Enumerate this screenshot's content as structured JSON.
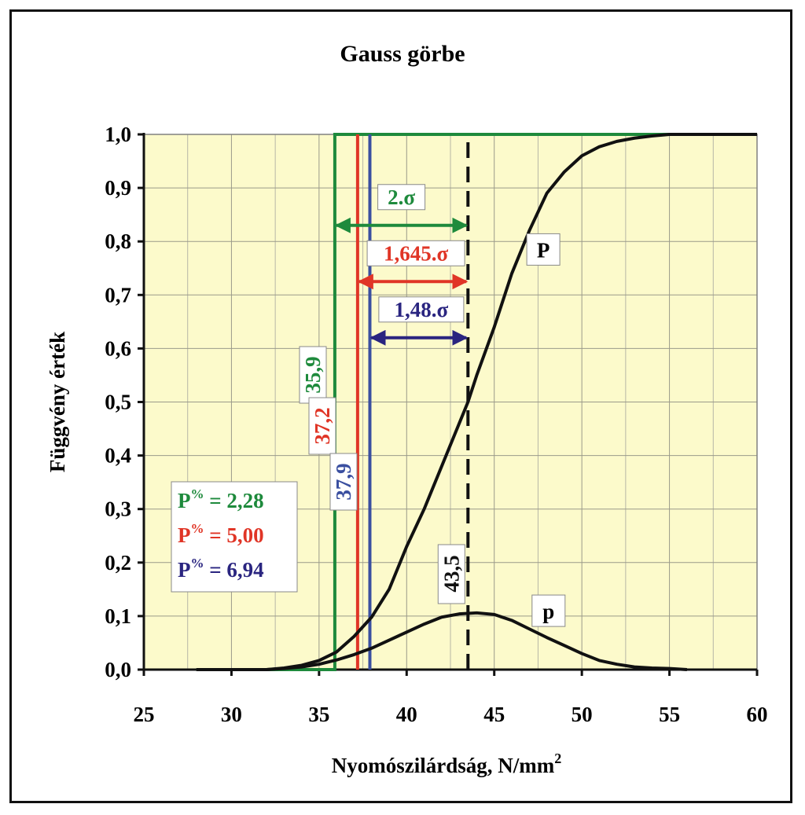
{
  "chart_data": {
    "type": "line",
    "title": "Gauss görbe",
    "xlabel": "Nyomószilárdság, N/mm",
    "xlabel_sup": "2",
    "ylabel": "Függvény érték",
    "xlim": [
      25,
      60
    ],
    "ylim": [
      0,
      1
    ],
    "xticks": [
      "25",
      "30",
      "35",
      "40",
      "45",
      "50",
      "55",
      "60"
    ],
    "yticks": [
      "0,0",
      "0,1",
      "0,2",
      "0,3",
      "0,4",
      "0,5",
      "0,6",
      "0,7",
      "0,8",
      "0,9",
      "1,0"
    ],
    "grid": true,
    "series": [
      {
        "name": "P",
        "x": [
          28,
          30,
          32,
          33,
          34,
          35,
          36,
          37,
          38,
          39,
          40,
          41,
          42,
          43,
          43.5,
          44,
          45,
          46,
          47,
          48,
          49,
          50,
          51,
          52,
          53,
          54,
          55,
          56,
          60
        ],
        "values": [
          0,
          0,
          0,
          0.003,
          0.008,
          0.017,
          0.033,
          0.062,
          0.098,
          0.15,
          0.23,
          0.3,
          0.38,
          0.46,
          0.5,
          0.55,
          0.64,
          0.74,
          0.82,
          0.89,
          0.93,
          0.96,
          0.977,
          0.987,
          0.993,
          0.997,
          1.0,
          1.0,
          1.0
        ]
      },
      {
        "name": "p",
        "x": [
          28,
          30,
          32,
          33,
          34,
          35,
          36,
          37,
          38,
          39,
          40,
          41,
          42,
          43,
          44,
          45,
          46,
          47,
          48,
          49,
          50,
          51,
          52,
          53,
          54,
          55,
          56
        ],
        "values": [
          0,
          0,
          0,
          0.002,
          0.005,
          0.01,
          0.018,
          0.028,
          0.04,
          0.055,
          0.07,
          0.085,
          0.098,
          0.104,
          0.106,
          0.103,
          0.092,
          0.076,
          0.06,
          0.045,
          0.03,
          0.017,
          0.01,
          0.005,
          0.003,
          0.002,
          0
        ]
      }
    ],
    "green_line": {
      "from": [
        28,
        0
      ],
      "to_x": 35.9,
      "top": 1.0,
      "to_end": 60
    },
    "vlines": [
      {
        "x": 35.9,
        "color": "#1e8a3c",
        "label": "35,9"
      },
      {
        "x": 37.2,
        "color": "#e03526",
        "label": "37,2"
      },
      {
        "x": 37.9,
        "color": "#3a4fa0",
        "label": "37,9"
      }
    ],
    "mean_line": {
      "x": 43.5,
      "label": "43,5"
    },
    "arrows": [
      {
        "from": 35.9,
        "to": 43.5,
        "y": 0.83,
        "color": "#1e8a3c",
        "label": "2.σ"
      },
      {
        "from": 37.2,
        "to": 43.5,
        "y": 0.725,
        "color": "#e03526",
        "label": "1,645.σ"
      },
      {
        "from": 37.9,
        "to": 43.5,
        "y": 0.62,
        "color": "#2a2580",
        "label": "1,48.σ"
      }
    ],
    "series_labels": [
      {
        "text": "P",
        "x": 47.8,
        "y": 0.785
      },
      {
        "text": "p",
        "x": 48.1,
        "y": 0.11
      }
    ],
    "legend": [
      {
        "lhs": "P",
        "sup": "%",
        "rhs": " = 2,28",
        "color": "#1e8a3c"
      },
      {
        "lhs": "P",
        "sup": "%",
        "rhs": " = 5,00",
        "color": "#e03526"
      },
      {
        "lhs": "P",
        "sup": "%",
        "rhs": " = 6,94",
        "color": "#2a2580"
      }
    ]
  }
}
